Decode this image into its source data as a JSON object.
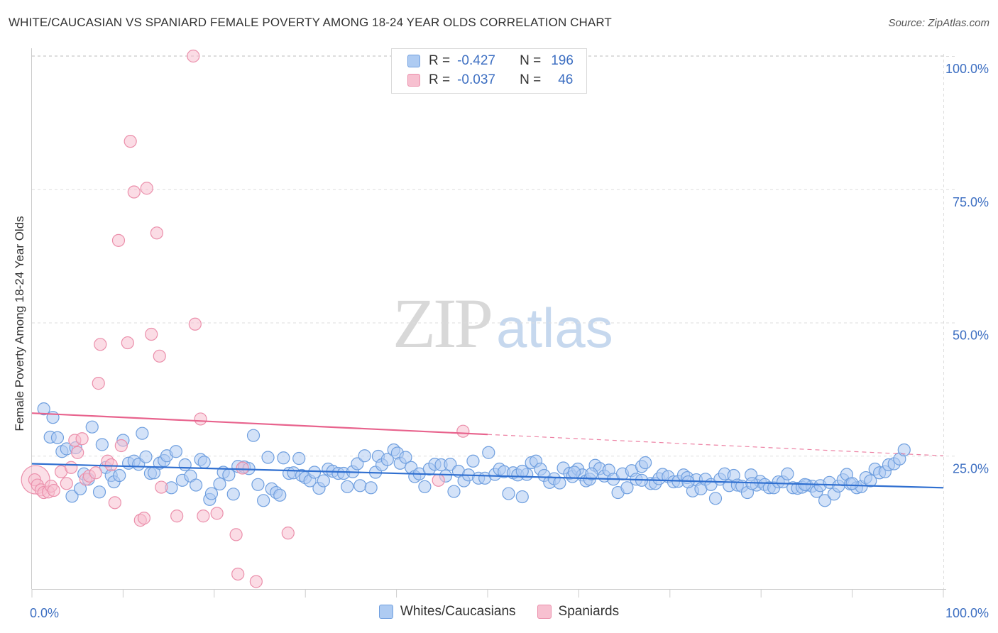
{
  "title": "WHITE/CAUCASIAN VS SPANIARD FEMALE POVERTY AMONG 18-24 YEAR OLDS CORRELATION CHART",
  "source": "Source: ZipAtlas.com",
  "watermark": {
    "zip": "ZIP",
    "atlas": "atlas"
  },
  "legend": {
    "row1": {
      "r_label": "R =",
      "r_value": "-0.427",
      "n_label": "N =",
      "n_value": "196"
    },
    "row2": {
      "r_label": "R =",
      "r_value": "-0.037",
      "n_label": "N =",
      "n_value": "46"
    }
  },
  "colors": {
    "blue_fill": "#aecbf2",
    "blue_stroke": "#6f9fdf",
    "blue_line": "#2f6fd0",
    "pink_fill": "#f7c0d0",
    "pink_stroke": "#eb8fab",
    "pink_line": "#e8638d",
    "tick_label": "#3d6fc2",
    "grid": "#dddddd"
  },
  "chart_data": {
    "type": "scatter",
    "title": "WHITE/CAUCASIAN VS SPANIARD FEMALE POVERTY AMONG 18-24 YEAR OLDS CORRELATION CHART",
    "xlabel": "",
    "ylabel": "Female Poverty Among 18-24 Year Olds",
    "xlim": [
      0,
      100
    ],
    "ylim": [
      0,
      102
    ],
    "x_tick_labels": [
      "0.0%",
      "100.0%"
    ],
    "y_ticks": [
      25,
      50,
      75,
      100
    ],
    "y_tick_labels": [
      "25.0%",
      "50.0%",
      "75.0%",
      "100.0%"
    ],
    "grid": true,
    "legend_position": "top-center",
    "series": [
      {
        "name": "Whites/Caucasians",
        "trend": {
          "x": [
            0,
            100
          ],
          "y": [
            23.5,
            19.0
          ]
        },
        "points": [
          [
            1.3,
            33.8
          ],
          [
            2.0,
            28.5
          ],
          [
            2.3,
            32.2
          ],
          [
            2.8,
            28.4
          ],
          [
            3.3,
            25.8
          ],
          [
            3.8,
            26.3
          ],
          [
            4.4,
            17.4
          ],
          [
            4.8,
            26.5
          ],
          [
            5.3,
            18.8
          ],
          [
            5.7,
            21.6
          ],
          [
            6.2,
            20.6
          ],
          [
            6.6,
            30.4
          ],
          [
            7.4,
            18.2
          ],
          [
            7.7,
            27.1
          ],
          [
            8.1,
            22.8
          ],
          [
            8.7,
            21.3
          ],
          [
            9.0,
            20.1
          ],
          [
            9.6,
            21.3
          ],
          [
            10.0,
            27.9
          ],
          [
            10.6,
            23.6
          ],
          [
            11.2,
            24.0
          ],
          [
            11.7,
            23.4
          ],
          [
            12.1,
            29.2
          ],
          [
            12.5,
            24.8
          ],
          [
            13.0,
            21.7
          ],
          [
            13.4,
            21.8
          ],
          [
            14.0,
            23.6
          ],
          [
            14.5,
            24.1
          ],
          [
            14.8,
            25.0
          ],
          [
            15.3,
            19.0
          ],
          [
            15.8,
            25.8
          ],
          [
            16.5,
            20.4
          ],
          [
            16.8,
            23.3
          ],
          [
            17.4,
            21.2
          ],
          [
            18.0,
            19.5
          ],
          [
            18.5,
            24.3
          ],
          [
            18.9,
            23.8
          ],
          [
            19.5,
            16.8
          ],
          [
            19.7,
            17.9
          ],
          [
            20.6,
            19.7
          ],
          [
            21.0,
            21.9
          ],
          [
            21.6,
            21.4
          ],
          [
            22.1,
            17.8
          ],
          [
            22.6,
            23.0
          ],
          [
            23.3,
            22.9
          ],
          [
            23.8,
            22.6
          ],
          [
            24.3,
            28.8
          ],
          [
            24.8,
            19.6
          ],
          [
            25.4,
            16.6
          ],
          [
            25.9,
            24.7
          ],
          [
            26.3,
            18.8
          ],
          [
            26.8,
            18.1
          ],
          [
            27.2,
            17.6
          ],
          [
            27.6,
            24.6
          ],
          [
            28.2,
            21.7
          ],
          [
            28.7,
            21.8
          ],
          [
            29.3,
            24.5
          ],
          [
            29.6,
            21.3
          ],
          [
            30.0,
            20.9
          ],
          [
            30.5,
            20.3
          ],
          [
            31.0,
            21.9
          ],
          [
            31.5,
            18.9
          ],
          [
            32.0,
            20.3
          ],
          [
            32.5,
            22.5
          ],
          [
            33.0,
            22.1
          ],
          [
            33.6,
            21.7
          ],
          [
            34.2,
            21.7
          ],
          [
            34.6,
            19.2
          ],
          [
            35.2,
            22.0
          ],
          [
            35.7,
            23.5
          ],
          [
            36.0,
            19.4
          ],
          [
            36.5,
            25.0
          ],
          [
            37.2,
            19.0
          ],
          [
            37.7,
            21.9
          ],
          [
            38.0,
            24.9
          ],
          [
            38.4,
            23.3
          ],
          [
            39.0,
            24.3
          ],
          [
            39.7,
            26.1
          ],
          [
            40.1,
            25.5
          ],
          [
            40.4,
            23.6
          ],
          [
            41.0,
            24.7
          ],
          [
            41.6,
            22.8
          ],
          [
            42.0,
            21.1
          ],
          [
            42.5,
            21.6
          ],
          [
            43.1,
            19.2
          ],
          [
            43.6,
            22.5
          ],
          [
            44.2,
            23.4
          ],
          [
            44.9,
            23.3
          ],
          [
            45.4,
            21.2
          ],
          [
            45.9,
            23.4
          ],
          [
            46.3,
            18.3
          ],
          [
            46.8,
            22.1
          ],
          [
            47.4,
            20.3
          ],
          [
            47.9,
            21.4
          ],
          [
            48.4,
            24.0
          ],
          [
            49.0,
            20.8
          ],
          [
            49.7,
            20.8
          ],
          [
            50.1,
            25.6
          ],
          [
            50.8,
            21.5
          ],
          [
            51.3,
            22.5
          ],
          [
            51.8,
            22.0
          ],
          [
            52.3,
            17.9
          ],
          [
            52.8,
            21.8
          ],
          [
            53.3,
            21.4
          ],
          [
            53.8,
            17.3
          ],
          [
            54.3,
            21.5
          ],
          [
            54.8,
            23.7
          ],
          [
            55.3,
            24.0
          ],
          [
            55.8,
            22.5
          ],
          [
            56.2,
            21.3
          ],
          [
            56.8,
            20.0
          ],
          [
            57.3,
            20.7
          ],
          [
            57.9,
            19.9
          ],
          [
            58.3,
            22.7
          ],
          [
            59.0,
            21.7
          ],
          [
            59.3,
            21.1
          ],
          [
            59.9,
            22.5
          ],
          [
            60.4,
            21.4
          ],
          [
            60.8,
            20.3
          ],
          [
            61.2,
            20.6
          ],
          [
            61.8,
            23.2
          ],
          [
            62.3,
            22.6
          ],
          [
            62.8,
            21.2
          ],
          [
            63.3,
            22.3
          ],
          [
            63.8,
            20.6
          ],
          [
            64.3,
            18.1
          ],
          [
            64.8,
            21.6
          ],
          [
            65.3,
            19.0
          ],
          [
            65.8,
            22.2
          ],
          [
            66.3,
            20.6
          ],
          [
            66.9,
            23.0
          ],
          [
            67.3,
            23.7
          ],
          [
            67.9,
            19.8
          ],
          [
            68.4,
            19.8
          ],
          [
            68.8,
            20.7
          ],
          [
            69.2,
            21.5
          ],
          [
            69.8,
            21.1
          ],
          [
            70.4,
            20.1
          ],
          [
            70.9,
            20.2
          ],
          [
            71.5,
            21.4
          ],
          [
            71.9,
            20.9
          ],
          [
            72.5,
            18.4
          ],
          [
            72.9,
            20.5
          ],
          [
            73.4,
            18.8
          ],
          [
            73.9,
            20.6
          ],
          [
            74.5,
            19.6
          ],
          [
            75.0,
            17.0
          ],
          [
            75.5,
            20.6
          ],
          [
            76.0,
            21.6
          ],
          [
            76.5,
            19.4
          ],
          [
            77.0,
            21.3
          ],
          [
            77.4,
            19.5
          ],
          [
            77.9,
            19.3
          ],
          [
            78.5,
            18.1
          ],
          [
            78.9,
            21.4
          ],
          [
            79.5,
            19.5
          ],
          [
            79.9,
            20.2
          ],
          [
            80.4,
            19.6
          ],
          [
            80.9,
            19.0
          ],
          [
            81.4,
            19.0
          ],
          [
            81.9,
            20.1
          ],
          [
            82.4,
            20.1
          ],
          [
            82.9,
            21.6
          ],
          [
            83.5,
            19.0
          ],
          [
            84.0,
            18.9
          ],
          [
            84.5,
            19.1
          ],
          [
            85.0,
            19.5
          ],
          [
            85.6,
            19.3
          ],
          [
            86.1,
            18.3
          ],
          [
            86.5,
            19.4
          ],
          [
            87.0,
            16.6
          ],
          [
            87.5,
            20.0
          ],
          [
            88.0,
            17.8
          ],
          [
            88.5,
            19.3
          ],
          [
            89.0,
            20.5
          ],
          [
            89.4,
            21.5
          ],
          [
            89.8,
            19.7
          ],
          [
            90.5,
            19.0
          ],
          [
            91.0,
            19.2
          ],
          [
            91.5,
            20.9
          ],
          [
            92.0,
            20.3
          ],
          [
            92.5,
            22.5
          ],
          [
            93.0,
            21.8
          ],
          [
            93.6,
            22.0
          ],
          [
            94.0,
            23.3
          ],
          [
            94.6,
            23.5
          ],
          [
            95.2,
            24.4
          ],
          [
            95.7,
            26.1
          ],
          [
            53.8,
            22.1
          ],
          [
            59.5,
            21.9
          ],
          [
            61.4,
            21.6
          ],
          [
            66.9,
            20.4
          ],
          [
            72.0,
            20.1
          ],
          [
            79.0,
            19.8
          ],
          [
            84.8,
            19.6
          ],
          [
            90.0,
            19.8
          ]
        ]
      },
      {
        "name": "Spaniards",
        "trend": {
          "x": [
            0,
            50
          ],
          "y": [
            33.0,
            29.0
          ],
          "dashed_extension": {
            "x": [
              50,
              100
            ],
            "y": [
              29.0,
              25.0
            ]
          }
        },
        "points": [
          [
            0.3,
            20.5
          ],
          [
            0.6,
            19.5
          ],
          [
            1.0,
            18.6
          ],
          [
            1.3,
            18.1
          ],
          [
            1.8,
            18.2
          ],
          [
            2.1,
            19.3
          ],
          [
            2.4,
            18.5
          ],
          [
            3.2,
            22.0
          ],
          [
            3.8,
            19.8
          ],
          [
            4.3,
            22.8
          ],
          [
            4.7,
            27.9
          ],
          [
            5.0,
            25.6
          ],
          [
            5.5,
            28.2
          ],
          [
            5.9,
            20.6
          ],
          [
            6.3,
            21.2
          ],
          [
            7.0,
            21.8
          ],
          [
            7.3,
            38.6
          ],
          [
            7.5,
            45.9
          ],
          [
            8.3,
            24.0
          ],
          [
            8.7,
            23.3
          ],
          [
            9.1,
            16.2
          ],
          [
            9.5,
            65.4
          ],
          [
            9.8,
            26.9
          ],
          [
            10.5,
            46.2
          ],
          [
            10.8,
            84.0
          ],
          [
            11.2,
            74.5
          ],
          [
            11.9,
            12.9
          ],
          [
            12.3,
            13.3
          ],
          [
            12.6,
            75.2
          ],
          [
            13.1,
            47.8
          ],
          [
            13.7,
            66.8
          ],
          [
            14.0,
            43.7
          ],
          [
            14.2,
            19.1
          ],
          [
            15.9,
            13.7
          ],
          [
            17.7,
            100.0
          ],
          [
            17.9,
            49.7
          ],
          [
            18.5,
            31.9
          ],
          [
            18.8,
            13.7
          ],
          [
            20.3,
            14.2
          ],
          [
            22.4,
            10.2
          ],
          [
            22.6,
            2.8
          ],
          [
            23.1,
            22.7
          ],
          [
            24.6,
            1.4
          ],
          [
            28.1,
            10.5
          ],
          [
            47.3,
            29.6
          ],
          [
            44.6,
            20.4
          ]
        ]
      }
    ]
  },
  "bottom_legend": {
    "blue": "Whites/Caucasians",
    "pink": "Spaniards"
  }
}
